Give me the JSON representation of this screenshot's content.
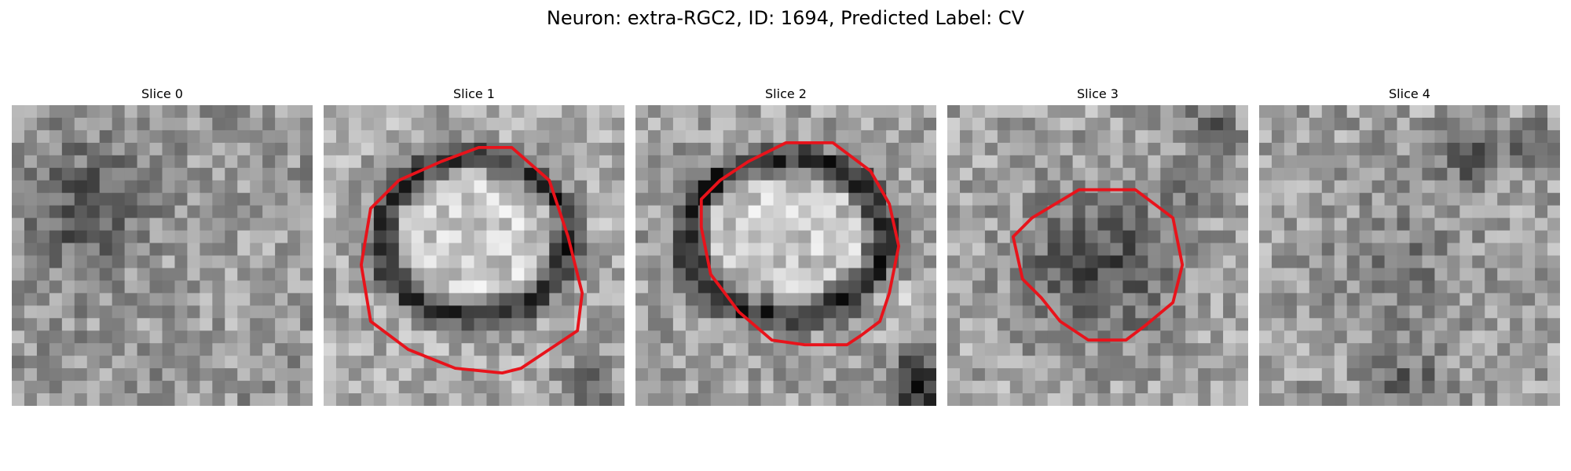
{
  "figure": {
    "title": "Neuron: extra-RGC2, ID: 1694, Predicted Label: CV"
  },
  "panels": [
    {
      "title": "Slice 0",
      "has_contour": false
    },
    {
      "title": "Slice 1",
      "has_contour": true
    },
    {
      "title": "Slice 2",
      "has_contour": true
    },
    {
      "title": "Slice 3",
      "has_contour": true
    },
    {
      "title": "Slice 4",
      "has_contour": false
    }
  ],
  "colors": {
    "contour": "#e8131b"
  }
}
